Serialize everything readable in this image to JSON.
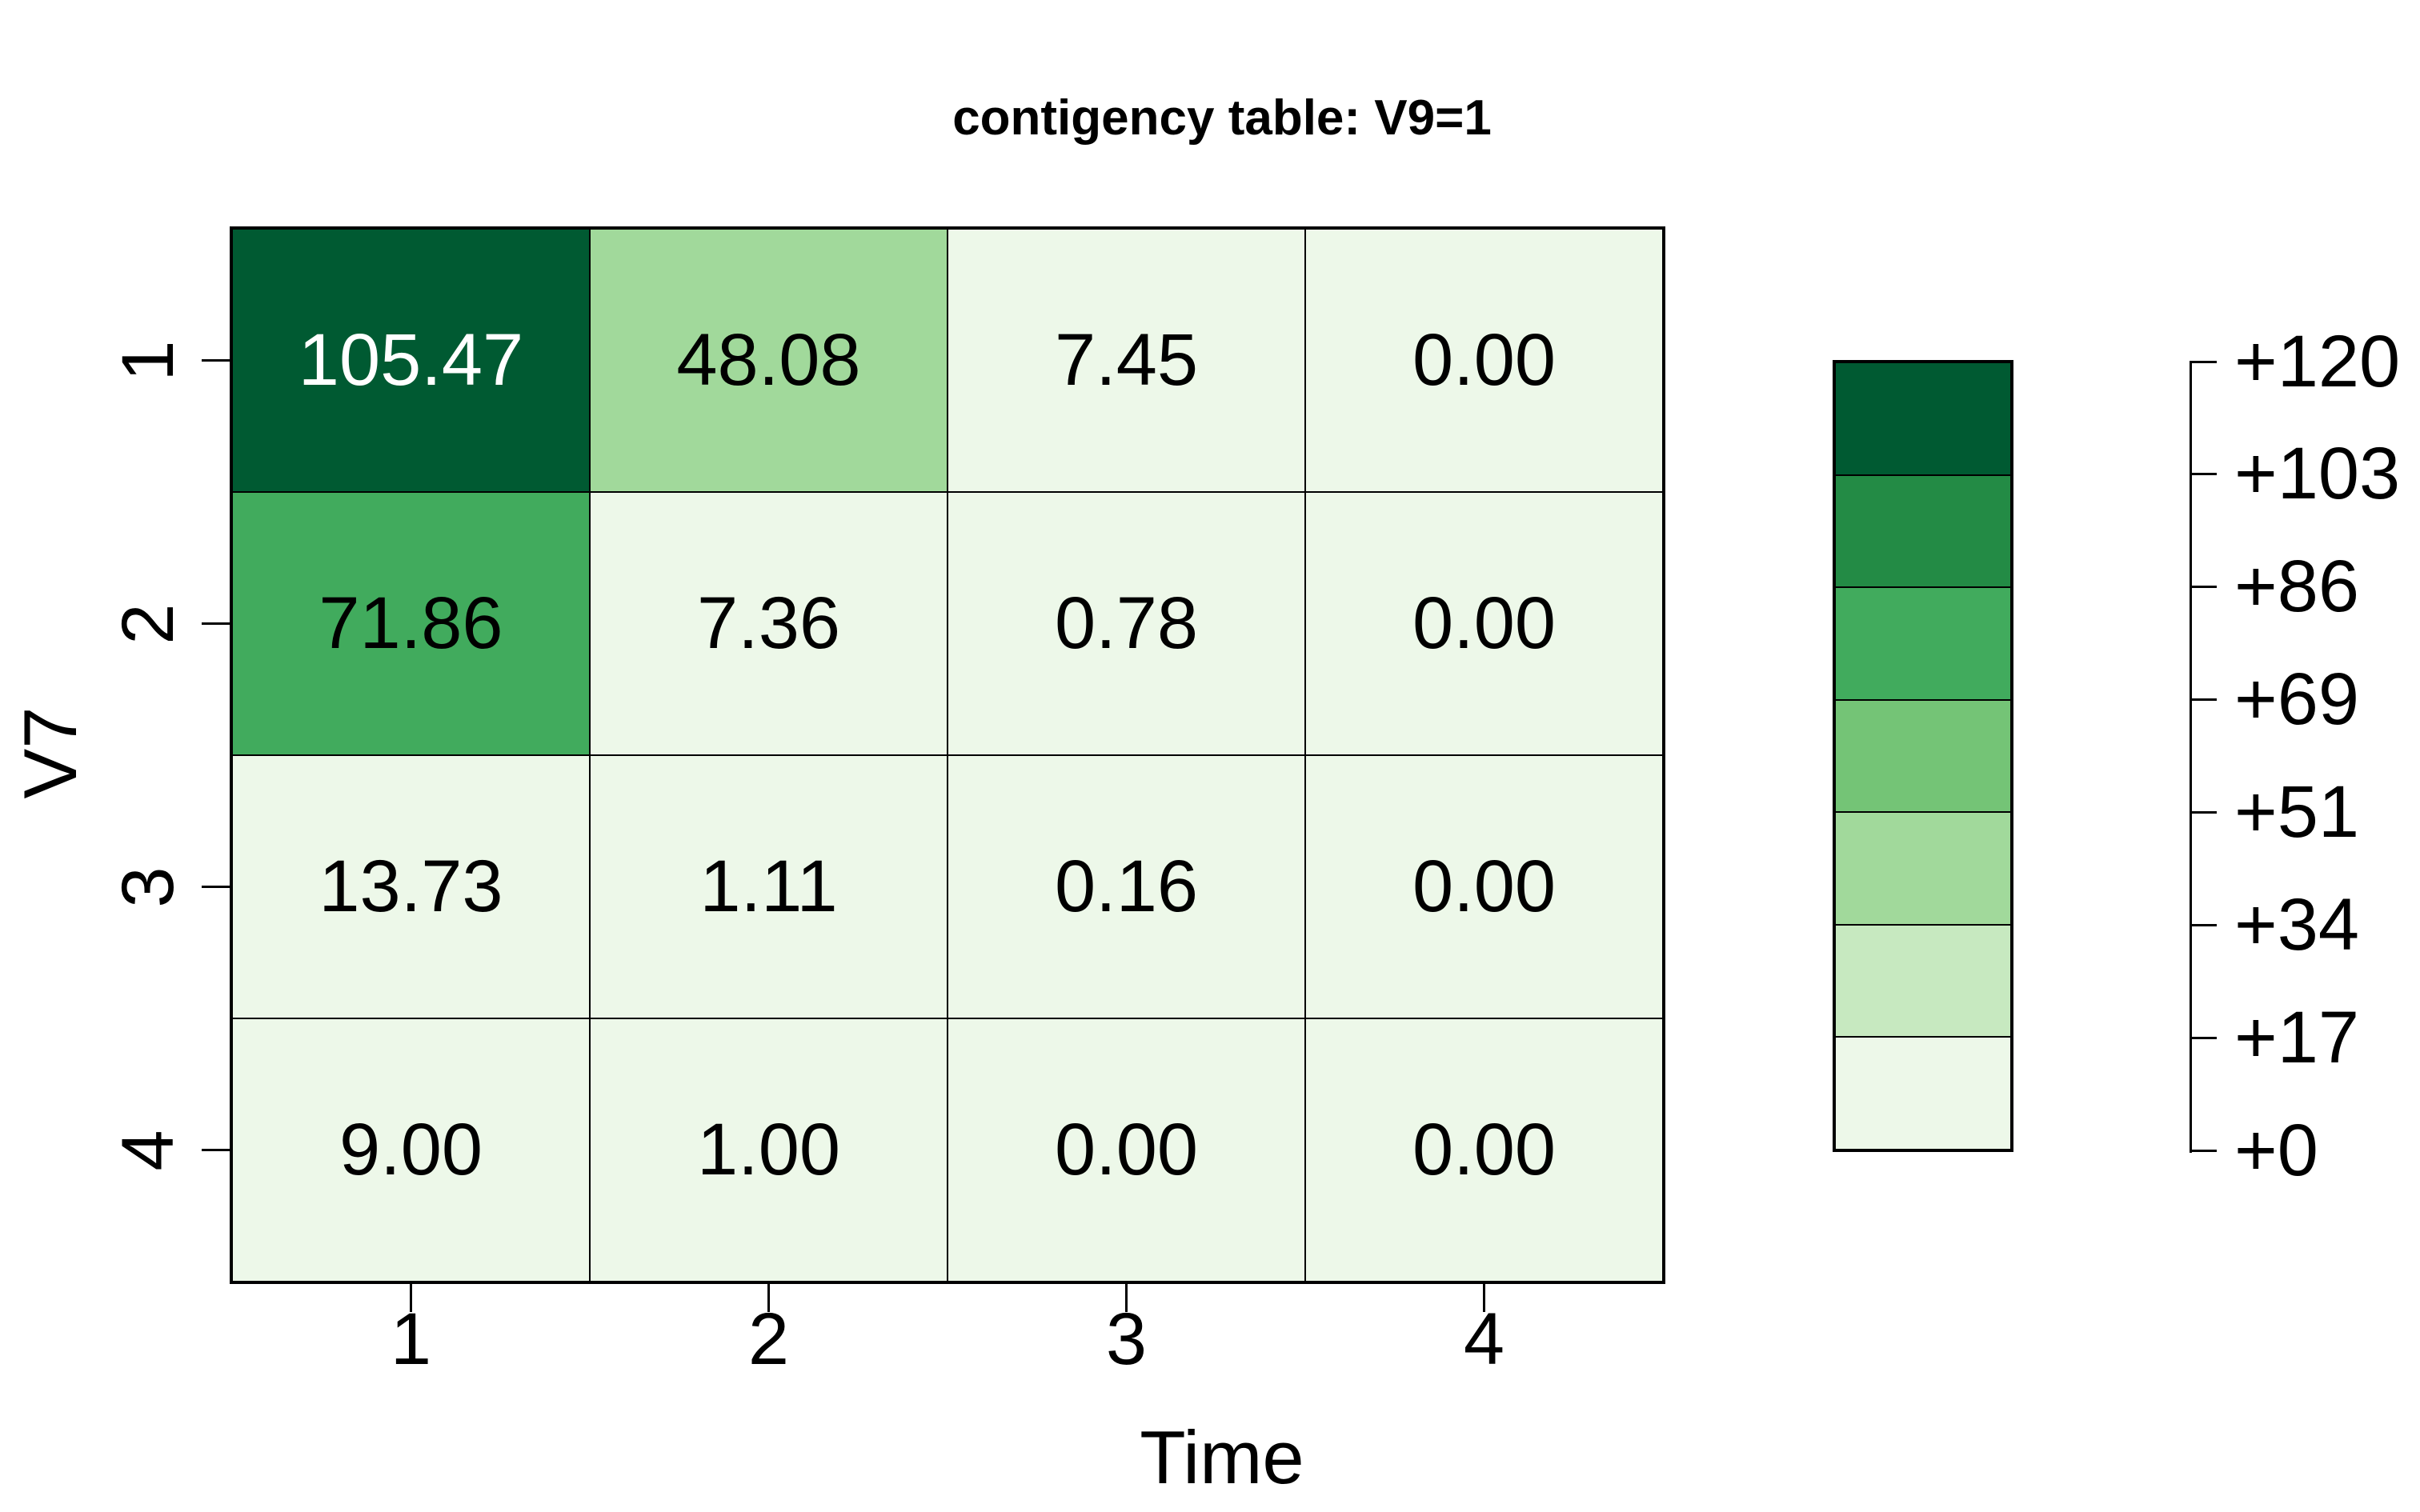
{
  "title": "contigency table: V9=1",
  "axes": {
    "x_label": "Time",
    "y_label": "V7",
    "x_tick_labels": [
      "1",
      "2",
      "3",
      "4"
    ],
    "y_tick_labels": [
      "1",
      "2",
      "3",
      "4"
    ]
  },
  "chart_data": {
    "type": "heatmap",
    "title": "contigency table: V9=1",
    "xlabel": "Time",
    "ylabel": "V7",
    "x_categories": [
      "1",
      "2",
      "3",
      "4"
    ],
    "y_categories": [
      "1",
      "2",
      "3",
      "4"
    ],
    "values": [
      [
        105.47,
        48.08,
        7.45,
        0.0
      ],
      [
        71.86,
        7.36,
        0.78,
        0.0
      ],
      [
        13.73,
        1.11,
        0.16,
        0.0
      ],
      [
        9.0,
        1.0,
        0.0,
        0.0
      ]
    ],
    "value_decimals": 2,
    "color_scale": {
      "breaks": [
        0,
        17,
        34,
        51,
        69,
        86,
        103,
        120
      ],
      "colors_low_to_high": [
        "#edf8e9",
        "#c7e9c0",
        "#a1d99b",
        "#74c476",
        "#41ab5d",
        "#238b45",
        "#005a32"
      ],
      "light_text_min_value": 103
    },
    "legend": {
      "position": "right",
      "tick_labels_top_to_bottom": [
        "+120",
        "+103",
        "+86",
        "+69",
        "+51",
        "+34",
        "+17",
        "+0"
      ]
    },
    "grid": true
  },
  "colors": {
    "background": "#ffffff",
    "grid_line": "#000000",
    "cell_text_dark": "#000000",
    "cell_text_light": "#ffffff"
  }
}
